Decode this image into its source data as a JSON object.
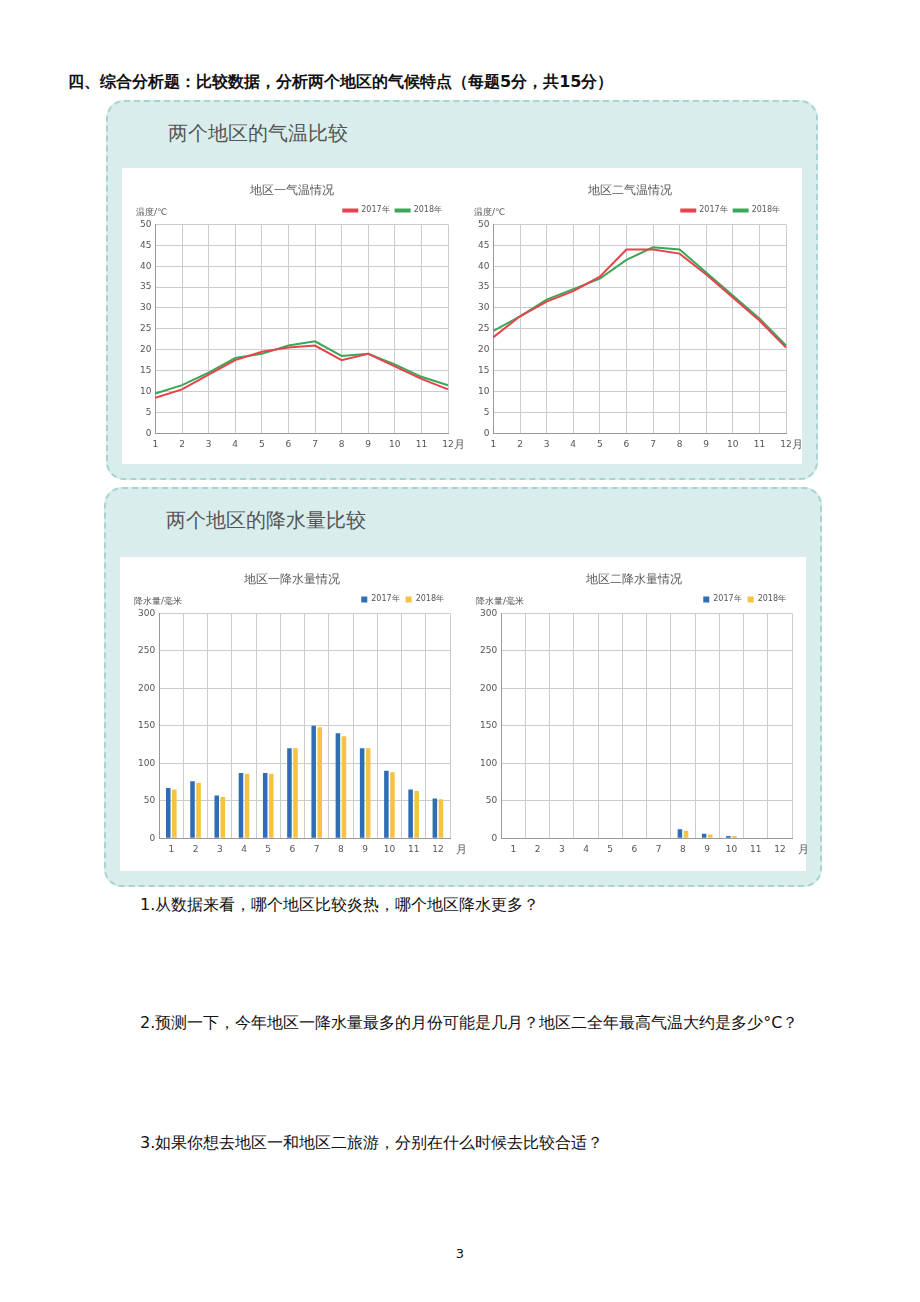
{
  "heading": "四、综合分析题：比较数据，分析两个地区的气候特点（每题5分，共15分）",
  "sections": [
    "两个地区的气温比较",
    "两个地区的降水量比较"
  ],
  "chart_data": [
    {
      "type": "line",
      "title": "地区一气温情况",
      "y_label": "温度/℃",
      "x_label": "月",
      "categories": [
        "1",
        "2",
        "3",
        "4",
        "5",
        "6",
        "7",
        "8",
        "9",
        "10",
        "11",
        "12"
      ],
      "series": [
        {
          "name": "2017年",
          "color": "#e8434d",
          "values": [
            8.5,
            10.5,
            14,
            17.5,
            19.5,
            20.5,
            21,
            17.5,
            19,
            16,
            13,
            10.5
          ]
        },
        {
          "name": "2018年",
          "color": "#3aa757",
          "values": [
            9.5,
            11.5,
            14.5,
            18,
            19,
            21,
            22,
            18.5,
            19,
            16.5,
            13.5,
            11.5
          ]
        }
      ],
      "ylim": [
        0,
        50
      ],
      "yticks": [
        0,
        5,
        10,
        15,
        20,
        25,
        30,
        35,
        40,
        45,
        50
      ],
      "grid": true,
      "legend": "top-right"
    },
    {
      "type": "line",
      "title": "地区二气温情况",
      "y_label": "温度/℃",
      "x_label": "月",
      "categories": [
        "1",
        "2",
        "3",
        "4",
        "5",
        "6",
        "7",
        "8",
        "9",
        "10",
        "11",
        "12"
      ],
      "series": [
        {
          "name": "2017年",
          "color": "#e8434d",
          "values": [
            23,
            28,
            31.5,
            34,
            37.5,
            44,
            44,
            43,
            38,
            32.5,
            27,
            20.5
          ]
        },
        {
          "name": "2018年",
          "color": "#3aa757",
          "values": [
            24.5,
            28,
            32,
            34.5,
            37,
            41.5,
            44.5,
            44,
            38.5,
            33,
            27.5,
            21
          ]
        }
      ],
      "ylim": [
        0,
        50
      ],
      "yticks": [
        0,
        5,
        10,
        15,
        20,
        25,
        30,
        35,
        40,
        45,
        50
      ],
      "grid": true,
      "legend": "top-right"
    },
    {
      "type": "bar",
      "title": "地区一降水量情况",
      "y_label": "降水量/毫米",
      "x_label": "月",
      "categories": [
        "1",
        "2",
        "3",
        "4",
        "5",
        "6",
        "7",
        "8",
        "9",
        "10",
        "11",
        "12"
      ],
      "series": [
        {
          "name": "2017年",
          "color": "#2f6db5",
          "values": [
            67,
            76,
            57,
            87,
            87,
            120,
            150,
            140,
            120,
            90,
            65,
            53
          ]
        },
        {
          "name": "2018年",
          "color": "#f5c342",
          "values": [
            65,
            74,
            55,
            86,
            86,
            120,
            148,
            136,
            120,
            88,
            63,
            52
          ]
        }
      ],
      "ylim": [
        0,
        300
      ],
      "yticks": [
        0,
        50,
        100,
        150,
        200,
        250,
        300
      ],
      "grid": true,
      "legend": "top-right"
    },
    {
      "type": "bar",
      "title": "地区二降水量情况",
      "y_label": "降水量/毫米",
      "x_label": "月",
      "categories": [
        "1",
        "2",
        "3",
        "4",
        "5",
        "6",
        "7",
        "8",
        "9",
        "10",
        "11",
        "12"
      ],
      "series": [
        {
          "name": "2017年",
          "color": "#2f6db5",
          "values": [
            0,
            0,
            0,
            0,
            0,
            0,
            0,
            12,
            6,
            3,
            0,
            0
          ]
        },
        {
          "name": "2018年",
          "color": "#f5c342",
          "values": [
            0,
            0,
            0,
            0,
            0,
            0,
            0,
            10,
            5,
            3,
            0,
            0
          ]
        }
      ],
      "ylim": [
        0,
        300
      ],
      "yticks": [
        0,
        50,
        100,
        150,
        200,
        250,
        300
      ],
      "grid": true,
      "legend": "top-right"
    }
  ],
  "questions": [
    "1.从数据来看，哪个地区比较炎热，哪个地区降水更多？",
    "2.预测一下，今年地区一降水量最多的月份可能是几月？地区二全年最高气温大约是多少°C？",
    "3.如果你想去地区一和地区二旅游，分别在什么时候去比较合适？"
  ],
  "page_number": "3"
}
